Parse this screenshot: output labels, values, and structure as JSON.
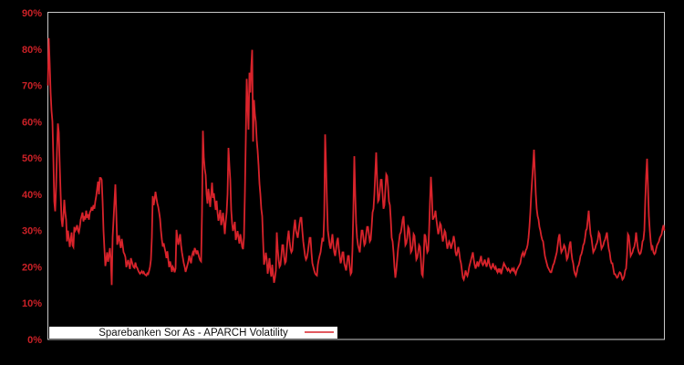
{
  "colors": {
    "background": "#000000",
    "plot_border": "#c9c9c9",
    "line": "#d8232b",
    "tick_label": "#cc2127",
    "legend_bg": "#ffffff",
    "legend_text": "#111111"
  },
  "y_axis": {
    "unit": "%",
    "tick_values": [
      0,
      10,
      20,
      30,
      40,
      50,
      60,
      70,
      80,
      90
    ],
    "tick_labels": [
      "0%",
      "10%",
      "20%",
      "30%",
      "40%",
      "50%",
      "60%",
      "70%",
      "80%",
      "90%"
    ]
  },
  "x_axis": {
    "tick_labels": []
  },
  "legend": {
    "label": "Sparebanken Sor As - APARCH Volatility"
  },
  "chart_data": {
    "type": "line",
    "title": "",
    "xlabel": "",
    "ylabel": "",
    "ylim": [
      0,
      90
    ],
    "y_unit": "%",
    "grid": false,
    "legend_position": "inside-bottom-left",
    "series": [
      {
        "name": "Sparebanken Sor As - APARCH Volatility",
        "color": "#d8232b",
        "values_pct": [
          70,
          83,
          76,
          68,
          63,
          60,
          50,
          38,
          35.3,
          42,
          52,
          59.5,
          57,
          48,
          40,
          33,
          31,
          34,
          38.5,
          35,
          33,
          27,
          30,
          28,
          25.5,
          27.5,
          29.5,
          26,
          25.5,
          31,
          30,
          30.5,
          31.5,
          30,
          29.5,
          31,
          33,
          34,
          35,
          32.5,
          34,
          33,
          35.5,
          33.5,
          34.5,
          33,
          35,
          35.5,
          36.5,
          35.5,
          37,
          36,
          38,
          39.5,
          41.5,
          43.5,
          40,
          44.5,
          44.5,
          44,
          38,
          30,
          25,
          20.2,
          22,
          24,
          21.4,
          23,
          25.2,
          22,
          15,
          28.2,
          33,
          38,
          42.7,
          35,
          26.1,
          27.5,
          28.7,
          26.5,
          25.2,
          27.7,
          26,
          24,
          23.5,
          22.7,
          19.9,
          21,
          21.9,
          20.5,
          19.4,
          22.4,
          21.5,
          20.6,
          19.9,
          19.7,
          21.2,
          20,
          19.7,
          19,
          18.5,
          18.1,
          18.4,
          18.8,
          18.3,
          18.6,
          18,
          17.8,
          17.6,
          18.2,
          18,
          18.9,
          20,
          22,
          28,
          39.5,
          37,
          38.5,
          40.7,
          39,
          37.5,
          36.5,
          35,
          33.2,
          30,
          27.5,
          25.6,
          26.5,
          25.2,
          24,
          22.4,
          24.3,
          22,
          19.9,
          21.5,
          20.4,
          18.6,
          20,
          19.5,
          18.5,
          19.5,
          30.2,
          28,
          26.1,
          27.5,
          29,
          26,
          24,
          22.5,
          21,
          20,
          18.6,
          19.5,
          20.5,
          21.5,
          23.1,
          22,
          21,
          23,
          24,
          23.5,
          25.2,
          24.5,
          23.5,
          24.5,
          23.5,
          22.5,
          21.8,
          21.5,
          35,
          57.5,
          50,
          47,
          45.3,
          40,
          37.4,
          41.5,
          39,
          36.5,
          40,
          43.2,
          39,
          40.3,
          38,
          35.7,
          38.2,
          35,
          32.7,
          34,
          35.7,
          31.5,
          33,
          34.9,
          32,
          29,
          32.4,
          35,
          40,
          52.8,
          48,
          44,
          35.7,
          32,
          29.9,
          31,
          32.4,
          27.4,
          28.5,
          29.9,
          28,
          26.4,
          29,
          27.5,
          25.5,
          24.9,
          28,
          40,
          55,
          71.8,
          65,
          57.8,
          73.5,
          68,
          75,
          79.8,
          54.5,
          66,
          62,
          60,
          55,
          52,
          48,
          43,
          40,
          36,
          34,
          27,
          20.6,
          22,
          23.9,
          22,
          18.1,
          20,
          22.4,
          19,
          17.3,
          20.6,
          18,
          15.6,
          17,
          19,
          29.5,
          25,
          22,
          20,
          20.5,
          23,
          26,
          26,
          23,
          21,
          21.5,
          25,
          28,
          30,
          27,
          25,
          24,
          24.5,
          28,
          31,
          33,
          30,
          29,
          28,
          30,
          32,
          33.5,
          33.5,
          30,
          27,
          25,
          23,
          22,
          22.5,
          24,
          26,
          28,
          28,
          24,
          21,
          20,
          19,
          18.2,
          17.8,
          17.6,
          20.6,
          22,
          23.1,
          24,
          26,
          28,
          27,
          34,
          56.5,
          48,
          38,
          30,
          28,
          26,
          25,
          27,
          29,
          26,
          24,
          23,
          25,
          27,
          28,
          25,
          23,
          21,
          22,
          24,
          24,
          21,
          20,
          19,
          21,
          23,
          23,
          20,
          18,
          18.5,
          25,
          36,
          50.5,
          40,
          32,
          28,
          26,
          25,
          24,
          27,
          30,
          30,
          28,
          26,
          26.5,
          29,
          31,
          31,
          29,
          27,
          27.5,
          31,
          35,
          36,
          40,
          46,
          51.5,
          44,
          38,
          38.5,
          41,
          44,
          44,
          40,
          36,
          37,
          41,
          45.5,
          45,
          42,
          38,
          37,
          33,
          28,
          27,
          24,
          20,
          17,
          19,
          22,
          25,
          27,
          29,
          29.5,
          31,
          33,
          34,
          30,
          26,
          26.5,
          28,
          31,
          30.5,
          28,
          24,
          24.5,
          26,
          29,
          28.5,
          25,
          22,
          22.5,
          24,
          26,
          25.5,
          22,
          18,
          17.5,
          22,
          29,
          28.5,
          26,
          24,
          24.5,
          30,
          38,
          44.8,
          40,
          33,
          33.5,
          34,
          35.5,
          33,
          31,
          29,
          30,
          32,
          31.5,
          29,
          27,
          28,
          30,
          29.5,
          27,
          25,
          26,
          27,
          26.5,
          25,
          26,
          27,
          28.5,
          27,
          24,
          23,
          24,
          25.5,
          24,
          22,
          21,
          19,
          17,
          16.5,
          17.5,
          19,
          18,
          17.5,
          18.5,
          20,
          21,
          22,
          23,
          24,
          22,
          20.5,
          19.5,
          20.5,
          21.5,
          20,
          21,
          22,
          23,
          21,
          20.5,
          21,
          22,
          21,
          20,
          21,
          22.5,
          21,
          20,
          19.5,
          20,
          21,
          20,
          19.5,
          20,
          19,
          18.5,
          19.5,
          18.5,
          19.5,
          18,
          19,
          20,
          21,
          20.5,
          20,
          19.5,
          19,
          19.5,
          19,
          18.5,
          19,
          19.5,
          19,
          19.5,
          18.5,
          18,
          19,
          19.5,
          20,
          20.5,
          21,
          22.5,
          23.5,
          24,
          23,
          23.5,
          24.5,
          25,
          26,
          28,
          31,
          35,
          40,
          44,
          48,
          52.3,
          46,
          40,
          36,
          34,
          33,
          31,
          30,
          28.5,
          27.5,
          27,
          25,
          23,
          22,
          21,
          20,
          19.5,
          19,
          18.5,
          18.5,
          19.5,
          20.5,
          21,
          22,
          23,
          24,
          26,
          28,
          29,
          26,
          24,
          24.5,
          25,
          26,
          25.5,
          24,
          22,
          22.5,
          24,
          26,
          27,
          24,
          22,
          21,
          19,
          18,
          17.5,
          18.5,
          20,
          20.5,
          21.5,
          23,
          23.5,
          24.5,
          26,
          26.5,
          28,
          30,
          30.5,
          33,
          35.5,
          32,
          29,
          28,
          26,
          24,
          24.5,
          25,
          26,
          26.5,
          27.5,
          29.5,
          29,
          27,
          25,
          25.5,
          26,
          27,
          27.5,
          28.5,
          29.5,
          27,
          25,
          24,
          22,
          21,
          21,
          19.5,
          18,
          18,
          17.5,
          17,
          17.2,
          18,
          18.5,
          18.3,
          17.5,
          16.5,
          16.8,
          17.5,
          19,
          19.5,
          23,
          29,
          28.5,
          26,
          23,
          23.5,
          24,
          25,
          25.5,
          27,
          29.5,
          27,
          25,
          24,
          23.5,
          23.8,
          25,
          27,
          27.5,
          30,
          38,
          45,
          49.8,
          42,
          34,
          30,
          27,
          25,
          25.5,
          24,
          23.5,
          23.8,
          25,
          26,
          26.5,
          27,
          28,
          28.5,
          29,
          30.5,
          31.5,
          30
        ]
      }
    ]
  }
}
